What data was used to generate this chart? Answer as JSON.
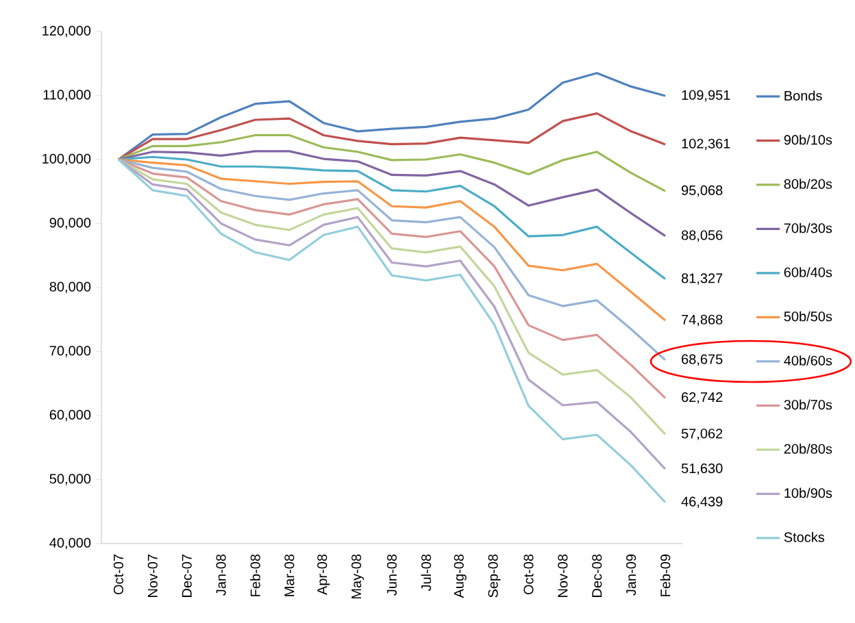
{
  "chart_data": {
    "type": "line",
    "categories": [
      "Oct-07",
      "Nov-07",
      "Dec-07",
      "Jan-08",
      "Feb-08",
      "Mar-08",
      "Apr-08",
      "May-08",
      "Jun-08",
      "Jul-08",
      "Aug-08",
      "Sep-08",
      "Oct-08",
      "Nov-08",
      "Dec-08",
      "Jan-09",
      "Feb-09"
    ],
    "series": [
      {
        "name": "Bonds",
        "color": "#4f81bd",
        "values": [
          100000,
          103900,
          104000,
          106600,
          108700,
          109100,
          105700,
          104400,
          104800,
          105100,
          105900,
          106400,
          107800,
          112000,
          113500,
          111400,
          109951
        ],
        "value_labels": [
          null,
          null,
          null,
          null,
          null,
          null,
          null,
          null,
          null,
          null,
          null,
          null,
          null,
          null,
          null,
          null,
          "109,951"
        ]
      },
      {
        "name": "90b/10s",
        "color": "#c0504d",
        "values": [
          100000,
          103200,
          103200,
          104600,
          106200,
          106400,
          103800,
          102900,
          102400,
          102500,
          103400,
          103000,
          102600,
          106000,
          107200,
          104400,
          102361
        ],
        "value_labels": [
          null,
          null,
          null,
          null,
          null,
          null,
          null,
          null,
          null,
          null,
          null,
          null,
          null,
          null,
          null,
          null,
          "102,361"
        ]
      },
      {
        "name": "80b/20s",
        "color": "#9bbb59",
        "values": [
          100000,
          102100,
          102100,
          102700,
          103800,
          103800,
          101900,
          101200,
          99900,
          100000,
          100800,
          99500,
          97700,
          99900,
          101200,
          97900,
          95068
        ],
        "value_labels": [
          null,
          null,
          null,
          null,
          null,
          null,
          null,
          null,
          null,
          null,
          null,
          null,
          null,
          null,
          null,
          null,
          "95,068"
        ]
      },
      {
        "name": "70b/30s",
        "color": "#8064a2",
        "values": [
          100000,
          101200,
          101100,
          100600,
          101300,
          101300,
          100100,
          99700,
          97600,
          97500,
          98200,
          96100,
          92800,
          94100,
          95300,
          91600,
          88056
        ],
        "value_labels": [
          null,
          null,
          null,
          null,
          null,
          null,
          null,
          null,
          null,
          null,
          null,
          null,
          null,
          null,
          null,
          null,
          "88,056"
        ]
      },
      {
        "name": "60b/40s",
        "color": "#4bacc6",
        "values": [
          100000,
          100400,
          100000,
          98900,
          98900,
          98700,
          98300,
          98200,
          95200,
          95000,
          95900,
          92700,
          88000,
          88200,
          89500,
          85400,
          81327
        ],
        "value_labels": [
          null,
          null,
          null,
          null,
          null,
          null,
          null,
          null,
          null,
          null,
          null,
          null,
          null,
          null,
          null,
          null,
          "81,327"
        ]
      },
      {
        "name": "50b/50s",
        "color": "#f79646",
        "values": [
          100000,
          99500,
          99100,
          97000,
          96600,
          96200,
          96500,
          96600,
          92700,
          92500,
          93500,
          89500,
          83400,
          82700,
          83700,
          79300,
          74868
        ],
        "value_labels": [
          null,
          null,
          null,
          null,
          null,
          null,
          null,
          null,
          null,
          null,
          null,
          null,
          null,
          null,
          null,
          null,
          "74,868"
        ]
      },
      {
        "name": "40b/60s",
        "color": "#95b3d7",
        "values": [
          100000,
          98700,
          98100,
          95400,
          94300,
          93700,
          94700,
          95200,
          90500,
          90200,
          91000,
          86300,
          78800,
          77100,
          78000,
          73500,
          68675
        ],
        "value_labels": [
          null,
          null,
          null,
          null,
          null,
          null,
          null,
          null,
          null,
          null,
          null,
          null,
          null,
          null,
          null,
          null,
          "68,675"
        ]
      },
      {
        "name": "30b/70s",
        "color": "#d99694",
        "values": [
          100000,
          97800,
          97200,
          93500,
          92100,
          91400,
          93000,
          93800,
          88400,
          87900,
          88800,
          83300,
          74100,
          71800,
          72600,
          67900,
          62742
        ],
        "value_labels": [
          null,
          null,
          null,
          null,
          null,
          null,
          null,
          null,
          null,
          null,
          null,
          null,
          null,
          null,
          null,
          null,
          "62,742"
        ]
      },
      {
        "name": "20b/80s",
        "color": "#c3d69b",
        "values": [
          100000,
          96900,
          96200,
          91700,
          89800,
          89000,
          91400,
          92400,
          86100,
          85500,
          86400,
          80200,
          69800,
          66400,
          67100,
          62800,
          57062
        ],
        "value_labels": [
          null,
          null,
          null,
          null,
          null,
          null,
          null,
          null,
          null,
          null,
          null,
          null,
          null,
          null,
          null,
          null,
          "57,062"
        ]
      },
      {
        "name": "10b/90s",
        "color": "#b3a2c7",
        "values": [
          100000,
          96100,
          95300,
          90000,
          87500,
          86600,
          89800,
          91000,
          83900,
          83300,
          84200,
          77000,
          65600,
          61600,
          62100,
          57400,
          51630
        ],
        "value_labels": [
          null,
          null,
          null,
          null,
          null,
          null,
          null,
          null,
          null,
          null,
          null,
          null,
          null,
          null,
          null,
          null,
          "51,630"
        ]
      },
      {
        "name": "Stocks",
        "color": "#93cddd",
        "values": [
          100000,
          95200,
          94300,
          88400,
          85500,
          84300,
          88200,
          89500,
          81900,
          81100,
          82000,
          74200,
          61500,
          56300,
          57000,
          52200,
          46439
        ],
        "value_labels": [
          null,
          null,
          null,
          null,
          null,
          null,
          null,
          null,
          null,
          null,
          null,
          null,
          null,
          null,
          null,
          null,
          "46,439"
        ]
      }
    ],
    "ylim": [
      40000,
      120000
    ],
    "yticks": [
      {
        "value": 40000,
        "label": "40,000"
      },
      {
        "value": 50000,
        "label": "50,000"
      },
      {
        "value": 60000,
        "label": "60,000"
      },
      {
        "value": 70000,
        "label": "70,000"
      },
      {
        "value": 80000,
        "label": "80,000"
      },
      {
        "value": 90000,
        "label": "90,000"
      },
      {
        "value": 100000,
        "label": "100,000"
      },
      {
        "value": 110000,
        "label": "110,000"
      },
      {
        "value": 120000,
        "label": "120,000"
      }
    ],
    "legend": "right"
  }
}
